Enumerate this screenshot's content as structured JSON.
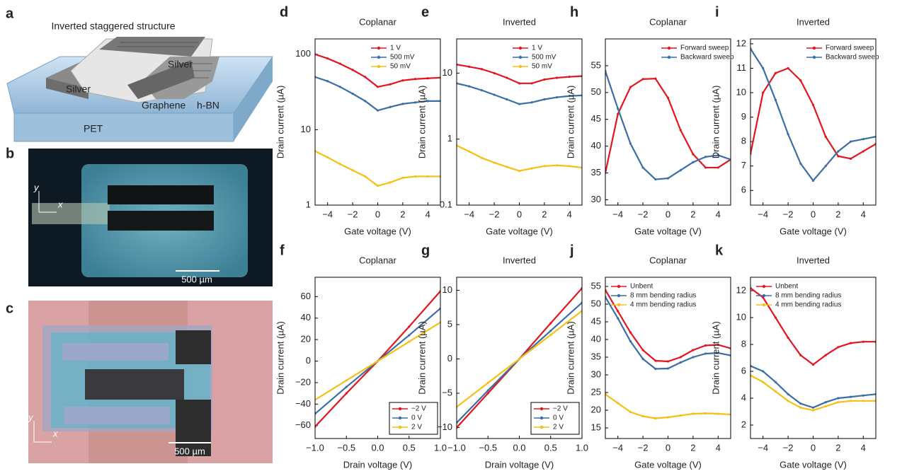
{
  "panel_labels": [
    "a",
    "b",
    "c"
  ],
  "schematic": {
    "title": "Inverted staggered structure",
    "labels": [
      "Silver",
      "Silver",
      "Graphene",
      "h-BN",
      "PET"
    ]
  },
  "photos": [
    {
      "axes": [
        "y",
        "x"
      ],
      "scale_bar": "500 µm"
    },
    {
      "axes": [
        "y",
        "x"
      ],
      "scale_bar": "500 µm"
    }
  ],
  "chart_data": [
    {
      "type": "line",
      "panel": "d",
      "title": "Coplanar",
      "xlabel": "Gate voltage (V)",
      "ylabel": "Drain current (µA)",
      "log_scale": true,
      "legend": "upper right",
      "x": [
        -5,
        -4,
        -3,
        -2,
        -1,
        0,
        1,
        2,
        3,
        4,
        5
      ],
      "xlim": [
        -5,
        5
      ],
      "xticks": [
        {
          "value": -4,
          "label": "−4"
        },
        {
          "value": -2,
          "label": "−2"
        },
        0,
        2,
        4
      ],
      "ylim": [
        1,
        160
      ],
      "yticks": [
        1,
        10,
        100
      ],
      "series": [
        {
          "name": "1 V",
          "color": "#e3161f",
          "values": [
            100,
            88,
            75,
            62,
            50,
            37,
            40,
            45,
            47,
            48,
            49
          ]
        },
        {
          "name": "500 mV",
          "color": "#3a6ea5",
          "values": [
            50,
            44,
            37,
            30,
            24,
            18,
            20,
            22,
            23,
            24,
            24
          ]
        },
        {
          "name": "50 mV",
          "color": "#f7bf16",
          "values": [
            5.2,
            4.3,
            3.5,
            2.9,
            2.4,
            1.8,
            2.0,
            2.3,
            2.4,
            2.4,
            2.4
          ]
        }
      ]
    },
    {
      "type": "line",
      "panel": "e",
      "title": "Inverted",
      "xlabel": "Gate voltage (V)",
      "ylabel": "Drain current (µA)",
      "log_scale": true,
      "legend": "upper right",
      "x": [
        -5,
        -4,
        -3,
        -2,
        -1,
        0,
        1,
        2,
        3,
        4,
        5
      ],
      "xlim": [
        -5,
        5
      ],
      "xticks": [
        {
          "value": -4,
          "label": "−4"
        },
        {
          "value": -2,
          "label": "−2"
        },
        0,
        2,
        4
      ],
      "ylim": [
        0.1,
        33
      ],
      "yticks": [
        0.1,
        1,
        10
      ],
      "series": [
        {
          "name": "1 V",
          "color": "#e3161f",
          "values": [
            13.5,
            12.5,
            11.5,
            10,
            8.5,
            7,
            7,
            8,
            8.5,
            8.8,
            9
          ]
        },
        {
          "name": "500 mV",
          "color": "#3a6ea5",
          "values": [
            7,
            6.3,
            5.5,
            4.7,
            4,
            3.4,
            3.6,
            4,
            4.3,
            4.5,
            4.6
          ]
        },
        {
          "name": "50 mV",
          "color": "#f7bf16",
          "values": [
            0.8,
            0.65,
            0.52,
            0.44,
            0.38,
            0.33,
            0.36,
            0.39,
            0.4,
            0.39,
            0.37
          ]
        }
      ]
    },
    {
      "type": "line",
      "panel": "h",
      "title": "Coplanar",
      "xlabel": "Gate voltage (V)",
      "ylabel": "Drain current (µA)",
      "log_scale": false,
      "legend": "upper right",
      "x": [
        -5,
        -4,
        -3,
        -2,
        -1,
        0,
        1,
        2,
        3,
        4,
        5
      ],
      "xlim": [
        -5,
        5
      ],
      "xticks": [
        {
          "value": -4,
          "label": "−4"
        },
        {
          "value": -2,
          "label": "−2"
        },
        0,
        2,
        4
      ],
      "ylim": [
        29,
        60
      ],
      "yticks": [
        30,
        35,
        40,
        45,
        50,
        55
      ],
      "series": [
        {
          "name": "Forward sweep",
          "color": "#e3161f",
          "values": [
            35,
            46,
            51,
            52.5,
            52.6,
            49,
            43,
            38.5,
            36,
            36,
            37.5
          ]
        },
        {
          "name": "Backward sweep",
          "color": "#3a6ea5",
          "values": [
            54,
            47,
            40.5,
            36,
            33.8,
            34,
            35.5,
            37,
            38,
            38.3,
            37.5
          ]
        }
      ]
    },
    {
      "type": "line",
      "panel": "i",
      "title": "Inverted",
      "xlabel": "Gate voltage (V)",
      "ylabel": "Drain current (µA)",
      "log_scale": false,
      "legend": "upper right",
      "x": [
        -5,
        -4,
        -3,
        -2,
        -1,
        0,
        1,
        2,
        3,
        4,
        5
      ],
      "xlim": [
        -5,
        5
      ],
      "xticks": [
        {
          "value": -4,
          "label": "−4"
        },
        {
          "value": -2,
          "label": "−2"
        },
        0,
        2,
        4
      ],
      "ylim": [
        5.4,
        12.2
      ],
      "yticks": [
        6,
        7,
        8,
        9,
        10,
        11,
        12
      ],
      "series": [
        {
          "name": "Forward sweep",
          "color": "#e3161f",
          "values": [
            7.5,
            10,
            10.8,
            11,
            10.5,
            9.5,
            8.2,
            7.4,
            7.3,
            7.6,
            7.9
          ]
        },
        {
          "name": "Backward sweep",
          "color": "#3a6ea5",
          "values": [
            11.8,
            11,
            9.7,
            8.3,
            7.1,
            6.4,
            7,
            7.6,
            8,
            8.1,
            8.2
          ]
        }
      ]
    },
    {
      "type": "line",
      "panel": "f",
      "title": "Coplanar",
      "xlabel": "Drain voltage (V)",
      "ylabel": "Drain current (µA)",
      "log_scale": false,
      "legend": "lower right",
      "x": [
        -1,
        -0.5,
        0,
        0.5,
        1
      ],
      "xlim": [
        -1,
        1
      ],
      "xticks": [
        {
          "value": -1,
          "label": "−1.0"
        },
        {
          "value": -0.5,
          "label": "−0.5"
        },
        {
          "value": 0,
          "label": "0.0"
        },
        0.5,
        {
          "value": 1,
          "label": "1.0"
        }
      ],
      "ylim": [
        -72,
        78
      ],
      "yticks": [
        {
          "value": -60,
          "label": "−60"
        },
        {
          "value": -40,
          "label": "−40"
        },
        {
          "value": -20,
          "label": "−20"
        },
        0,
        20,
        40,
        60
      ],
      "series": [
        {
          "name": "−2 V",
          "color": "#e3161f",
          "values": [
            -61,
            -30,
            0,
            32,
            65
          ]
        },
        {
          "name": "0 V",
          "color": "#3a6ea5",
          "values": [
            -49,
            -24,
            0,
            24,
            49
          ]
        },
        {
          "name": "2 V",
          "color": "#f7bf16",
          "values": [
            -36,
            -18,
            0,
            18,
            36
          ]
        }
      ]
    },
    {
      "type": "line",
      "panel": "g",
      "title": "Inverted",
      "xlabel": "Drain voltage (V)",
      "ylabel": "Drain current (µA)",
      "log_scale": false,
      "legend": "lower right",
      "x": [
        -1,
        -0.5,
        0,
        0.5,
        1
      ],
      "xlim": [
        -1,
        1
      ],
      "xticks": [
        {
          "value": -1,
          "label": "−1.0"
        },
        {
          "value": -0.5,
          "label": "−0.5"
        },
        {
          "value": 0,
          "label": "0.0"
        },
        0.5,
        {
          "value": 1,
          "label": "1.0"
        }
      ],
      "ylim": [
        -11.6,
        11.9
      ],
      "yticks": [
        {
          "value": -10,
          "label": "−10"
        },
        {
          "value": -5,
          "label": "−5"
        },
        0,
        5,
        10
      ],
      "series": [
        {
          "name": "−2 V",
          "color": "#e3161f",
          "values": [
            -10,
            -5,
            0,
            5.2,
            10.3
          ]
        },
        {
          "name": "0 V",
          "color": "#3a6ea5",
          "values": [
            -9.3,
            -4.6,
            0,
            4.1,
            8.2
          ]
        },
        {
          "name": "2 V",
          "color": "#f7bf16",
          "values": [
            -7,
            -3.5,
            0,
            3.5,
            7
          ]
        }
      ]
    },
    {
      "type": "line",
      "panel": "j",
      "title": "Coplanar",
      "xlabel": "Gate voltage (V)",
      "ylabel": "Drain current (µA)",
      "log_scale": false,
      "legend": "upper left",
      "x": [
        -5,
        -4,
        -3,
        -2,
        -1,
        0,
        1,
        2,
        3,
        4,
        5
      ],
      "xlim": [
        -5,
        5
      ],
      "xticks": [
        {
          "value": -4,
          "label": "−4"
        },
        {
          "value": -2,
          "label": "−2"
        },
        0,
        2,
        4
      ],
      "ylim": [
        12,
        57.6
      ],
      "yticks": [
        15,
        20,
        25,
        30,
        35,
        40,
        45,
        50,
        55
      ],
      "series": [
        {
          "name": "Unbent",
          "color": "#e3161f",
          "values": [
            54,
            48,
            42,
            37,
            34,
            33.8,
            35,
            37,
            38.3,
            38.5,
            37.5
          ]
        },
        {
          "name": "8 mm bending radius",
          "color": "#3a6ea5",
          "values": [
            52,
            46,
            39.5,
            34.5,
            31.7,
            31.8,
            33.5,
            35,
            36,
            36.2,
            35.5
          ]
        },
        {
          "name": "4 mm bending radius",
          "color": "#f7bf16",
          "values": [
            24.5,
            22,
            19.5,
            18.3,
            17.7,
            18,
            18.5,
            19,
            19.1,
            19,
            18.8
          ]
        }
      ]
    },
    {
      "type": "line",
      "panel": "k",
      "title": "Inverted",
      "xlabel": "Gate voltage (V)",
      "ylabel": "Drain current (µA)",
      "log_scale": false,
      "legend": "upper left",
      "x": [
        -5,
        -4,
        -3,
        -2,
        -1,
        0,
        1,
        2,
        3,
        4,
        5
      ],
      "xlim": [
        -5,
        5
      ],
      "xticks": [
        {
          "value": -4,
          "label": "−4"
        },
        {
          "value": -2,
          "label": "−2"
        },
        0,
        2,
        4
      ],
      "ylim": [
        1,
        13
      ],
      "yticks": [
        2,
        4,
        6,
        8,
        10,
        12
      ],
      "series": [
        {
          "name": "Unbent",
          "color": "#e3161f",
          "values": [
            12.2,
            11.5,
            10,
            8.5,
            7.2,
            6.5,
            7.2,
            7.8,
            8.1,
            8.2,
            8.2
          ]
        },
        {
          "name": "8 mm bending radius",
          "color": "#3a6ea5",
          "values": [
            6.4,
            6,
            5.2,
            4.3,
            3.6,
            3.3,
            3.7,
            4,
            4.1,
            4.2,
            4.3
          ]
        },
        {
          "name": "4 mm bending radius",
          "color": "#f7bf16",
          "values": [
            5.7,
            5.2,
            4.5,
            3.8,
            3.3,
            3.1,
            3.4,
            3.7,
            3.8,
            3.8,
            3.8
          ]
        }
      ]
    }
  ]
}
